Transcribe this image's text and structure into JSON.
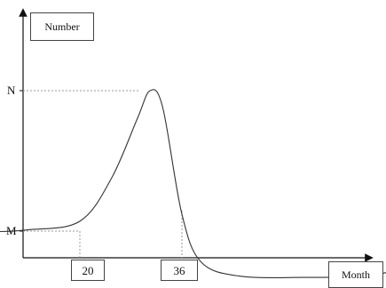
{
  "chart_data": {
    "type": "line",
    "xlabel": "Month",
    "ylabel": "Number",
    "x_annotations": [
      "20",
      "36"
    ],
    "y_annotations": [
      "M",
      "N"
    ],
    "series": [
      {
        "points": [
          {
            "x": 0,
            "y": 0.05
          },
          {
            "x": 5,
            "y": 0.0
          },
          {
            "x": 12,
            "y": 0.01
          },
          {
            "x": 20,
            "y": 0.07
          },
          {
            "x": 25,
            "y": 0.38
          },
          {
            "x": 29,
            "y": 0.8
          },
          {
            "x": 31,
            "y": 1.0
          },
          {
            "x": 33,
            "y": 0.88
          },
          {
            "x": 36,
            "y": 0.12
          },
          {
            "x": 39,
            "y": -0.22
          },
          {
            "x": 45,
            "y": -0.32
          },
          {
            "x": 55,
            "y": -0.33
          },
          {
            "x": 65,
            "y": -0.32
          },
          {
            "x": 70,
            "y": -0.28
          },
          {
            "x": 75,
            "y": -0.31
          }
        ]
      }
    ]
  }
}
